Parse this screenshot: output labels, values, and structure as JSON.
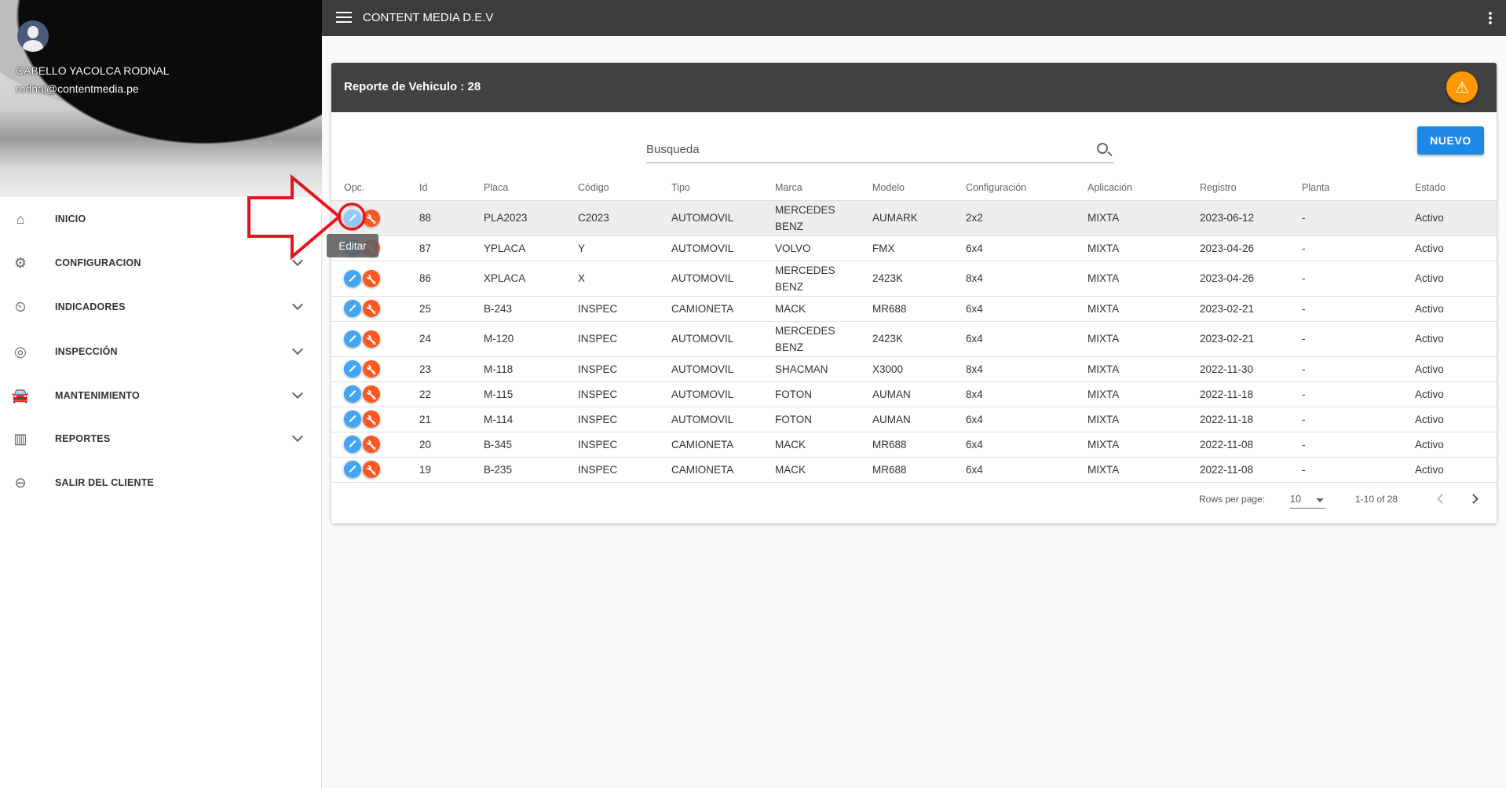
{
  "app": {
    "title": "CONTENT MEDIA D.E.V"
  },
  "user": {
    "name": "CABELLO YACOLCA RODNAL",
    "email": "rodnal@contentmedia.pe"
  },
  "sidebar": {
    "items": [
      {
        "label": "INICIO",
        "icon": "home-icon",
        "expandable": false
      },
      {
        "label": "CONFIGURACION",
        "icon": "gear-icon",
        "expandable": true
      },
      {
        "label": "INDICADORES",
        "icon": "gauge-icon",
        "expandable": true
      },
      {
        "label": "INSPECCIÓN",
        "icon": "inspection-icon",
        "expandable": true
      },
      {
        "label": "MANTENIMIENTO",
        "icon": "car-icon",
        "expandable": true
      },
      {
        "label": "REPORTES",
        "icon": "bar-chart-icon",
        "expandable": true
      },
      {
        "label": "SALIR DEL CLIENTE",
        "icon": "exit-icon",
        "expandable": false
      }
    ]
  },
  "card": {
    "title": "Reporte de Vehiculo : 28",
    "warning_icon": "warning-icon",
    "warning_color": "#ff9800"
  },
  "search": {
    "placeholder": "Busqueda",
    "value": ""
  },
  "toolbar": {
    "new_label": "NUEVO"
  },
  "tooltip": {
    "text": "Editar"
  },
  "table": {
    "columns": [
      "Opc.",
      "Id",
      "Placa",
      "Código",
      "Tipo",
      "Marca",
      "Modelo",
      "Configuración",
      "Aplicación",
      "Registro",
      "Planta",
      "Estado"
    ],
    "rows": [
      [
        "88",
        "PLA2023",
        "C2023",
        "AUTOMOVIL",
        "MERCEDES BENZ",
        "AUMARK",
        "2x2",
        "MIXTA",
        "2023-06-12",
        "-",
        "Activo"
      ],
      [
        "87",
        "YPLACA",
        "Y",
        "AUTOMOVIL",
        "VOLVO",
        "FMX",
        "6x4",
        "MIXTA",
        "2023-04-26",
        "-",
        "Activo"
      ],
      [
        "86",
        "XPLACA",
        "X",
        "AUTOMOVIL",
        "MERCEDES BENZ",
        "2423K",
        "8x4",
        "MIXTA",
        "2023-04-26",
        "-",
        "Activo"
      ],
      [
        "25",
        "B-243",
        "INSPEC",
        "CAMIONETA",
        "MACK",
        "MR688",
        "6x4",
        "MIXTA",
        "2023-02-21",
        "-",
        "Activo"
      ],
      [
        "24",
        "M-120",
        "INSPEC",
        "AUTOMOVIL",
        "MERCEDES BENZ",
        "2423K",
        "6x4",
        "MIXTA",
        "2023-02-21",
        "-",
        "Activo"
      ],
      [
        "23",
        "M-118",
        "INSPEC",
        "AUTOMOVIL",
        "SHACMAN",
        "X3000",
        "8x4",
        "MIXTA",
        "2022-11-30",
        "-",
        "Activo"
      ],
      [
        "22",
        "M-115",
        "INSPEC",
        "AUTOMOVIL",
        "FOTON",
        "AUMAN",
        "8x4",
        "MIXTA",
        "2022-11-18",
        "-",
        "Activo"
      ],
      [
        "21",
        "M-114",
        "INSPEC",
        "AUTOMOVIL",
        "FOTON",
        "AUMAN",
        "6x4",
        "MIXTA",
        "2022-11-18",
        "-",
        "Activo"
      ],
      [
        "20",
        "B-345",
        "INSPEC",
        "CAMIONETA",
        "MACK",
        "MR688",
        "6x4",
        "MIXTA",
        "2022-11-08",
        "-",
        "Activo"
      ],
      [
        "19",
        "B-235",
        "INSPEC",
        "CAMIONETA",
        "MACK",
        "MR688",
        "6x4",
        "MIXTA",
        "2022-11-08",
        "-",
        "Activo"
      ]
    ]
  },
  "pagination": {
    "rows_per_page_label": "Rows per page:",
    "rows_per_page": "10",
    "range": "1-10 of 28"
  },
  "colors": {
    "edit": "#42a5f5",
    "tools": "#ff5722",
    "primary": "#1e88e5",
    "topbar": "#3d3d3d",
    "annotation": "#e8141c"
  }
}
